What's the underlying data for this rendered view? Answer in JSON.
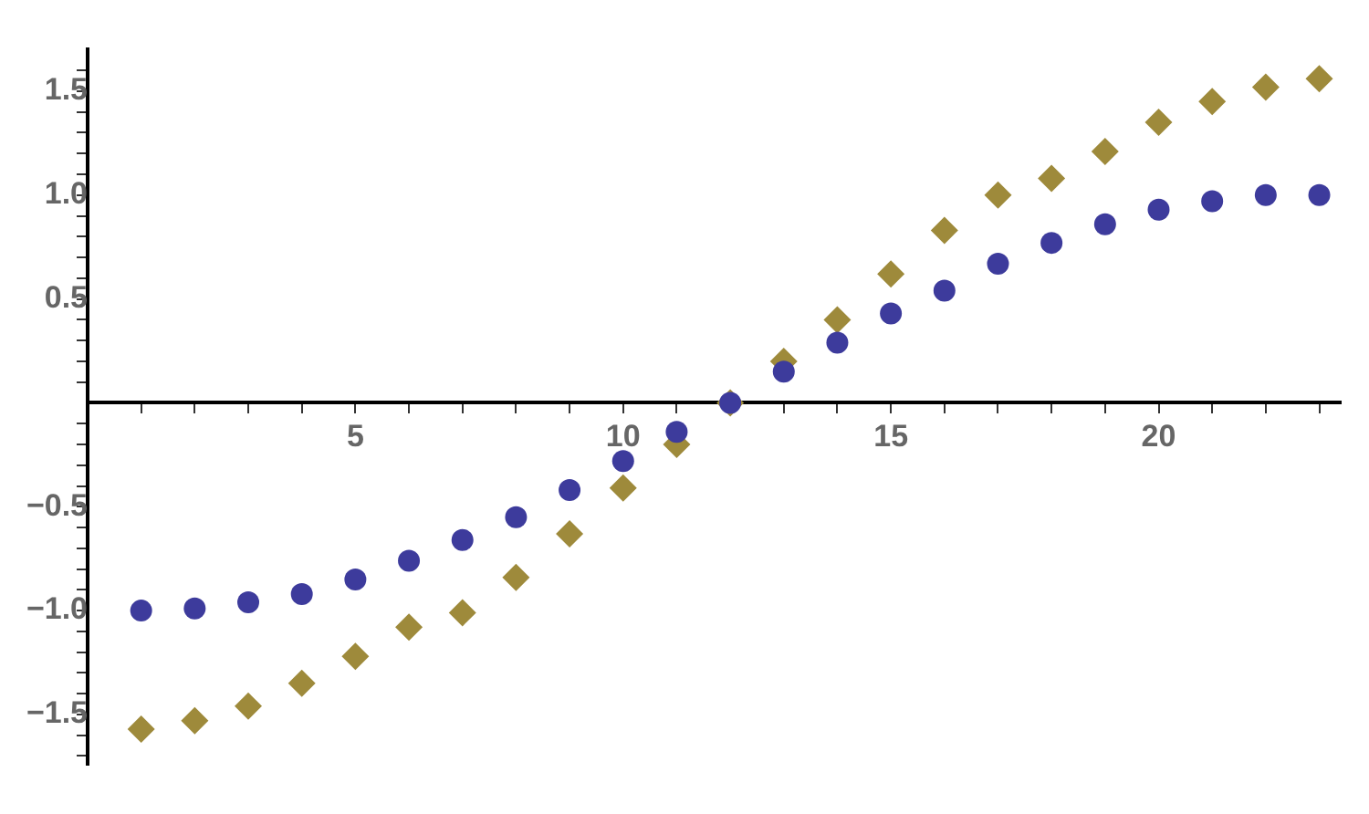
{
  "chart_data": {
    "type": "scatter",
    "x": [
      1,
      2,
      3,
      4,
      5,
      6,
      7,
      8,
      9,
      10,
      11,
      12,
      13,
      14,
      15,
      16,
      17,
      18,
      19,
      20,
      21,
      22,
      23
    ],
    "series": [
      {
        "color": "#3d3b9c",
        "marker": "circle",
        "values": [
          -1.0,
          -0.99,
          -0.96,
          -0.92,
          -0.85,
          -0.76,
          -0.66,
          -0.55,
          -0.42,
          -0.28,
          -0.14,
          0,
          0.15,
          0.29,
          0.43,
          0.54,
          0.67,
          0.77,
          0.86,
          0.93,
          0.97,
          1.0,
          1.0
        ]
      },
      {
        "color": "#9e8a3b",
        "marker": "diamond",
        "values": [
          -1.57,
          -1.53,
          -1.46,
          -1.35,
          -1.22,
          -1.08,
          -1.01,
          -0.84,
          -0.63,
          -0.41,
          -0.2,
          0,
          0.2,
          0.4,
          0.62,
          0.83,
          1.0,
          1.08,
          1.21,
          1.35,
          1.45,
          1.52,
          1.56
        ]
      }
    ],
    "xlim": [
      0,
      23.4
    ],
    "ylim": [
      -1.74,
      1.7
    ],
    "xticks": [
      {
        "value": 1,
        "label": null
      },
      {
        "value": 2,
        "label": null
      },
      {
        "value": 3,
        "label": null
      },
      {
        "value": 4,
        "label": null
      },
      5,
      {
        "value": 6,
        "label": null
      },
      {
        "value": 7,
        "label": null
      },
      {
        "value": 8,
        "label": null
      },
      {
        "value": 9,
        "label": null
      },
      10,
      {
        "value": 11,
        "label": null
      },
      {
        "value": 12,
        "label": null
      },
      {
        "value": 13,
        "label": null
      },
      {
        "value": 14,
        "label": null
      },
      15,
      {
        "value": 16,
        "label": null
      },
      {
        "value": 17,
        "label": null
      },
      {
        "value": 18,
        "label": null
      },
      {
        "value": 19,
        "label": null
      },
      20,
      {
        "value": 21,
        "label": null
      },
      {
        "value": 22,
        "label": null
      },
      {
        "value": 23,
        "label": null
      }
    ],
    "yticks": [
      {
        "value": -1.7,
        "label": null
      },
      {
        "value": -1.6,
        "label": null
      },
      {
        "value": -1.5,
        "label": "−1.5"
      },
      {
        "value": -1.4,
        "label": null
      },
      {
        "value": -1.3,
        "label": null
      },
      {
        "value": -1.2,
        "label": null
      },
      {
        "value": -1.1,
        "label": null
      },
      {
        "value": -1,
        "label": "−1.0"
      },
      {
        "value": -0.9,
        "label": null
      },
      {
        "value": -0.8,
        "label": null
      },
      {
        "value": -0.7,
        "label": null
      },
      {
        "value": -0.6,
        "label": null
      },
      {
        "value": -0.5,
        "label": "−0.5"
      },
      {
        "value": -0.4,
        "label": null
      },
      {
        "value": -0.3,
        "label": null
      },
      {
        "value": -0.2,
        "label": null
      },
      {
        "value": -0.1,
        "label": null
      },
      {
        "value": 0.1,
        "label": null
      },
      {
        "value": 0.2,
        "label": null
      },
      {
        "value": 0.3,
        "label": null
      },
      {
        "value": 0.4,
        "label": null
      },
      0.5,
      {
        "value": 0.6,
        "label": null
      },
      {
        "value": 0.7,
        "label": null
      },
      {
        "value": 0.8,
        "label": null
      },
      {
        "value": 0.9,
        "label": null
      },
      {
        "value": 1,
        "label": "1.0"
      },
      {
        "value": 1.1,
        "label": null
      },
      {
        "value": 1.2,
        "label": null
      },
      {
        "value": 1.3,
        "label": null
      },
      {
        "value": 1.4,
        "label": null
      },
      1.5,
      {
        "value": 1.6,
        "label": null
      }
    ],
    "grid": false,
    "legend": false
  }
}
